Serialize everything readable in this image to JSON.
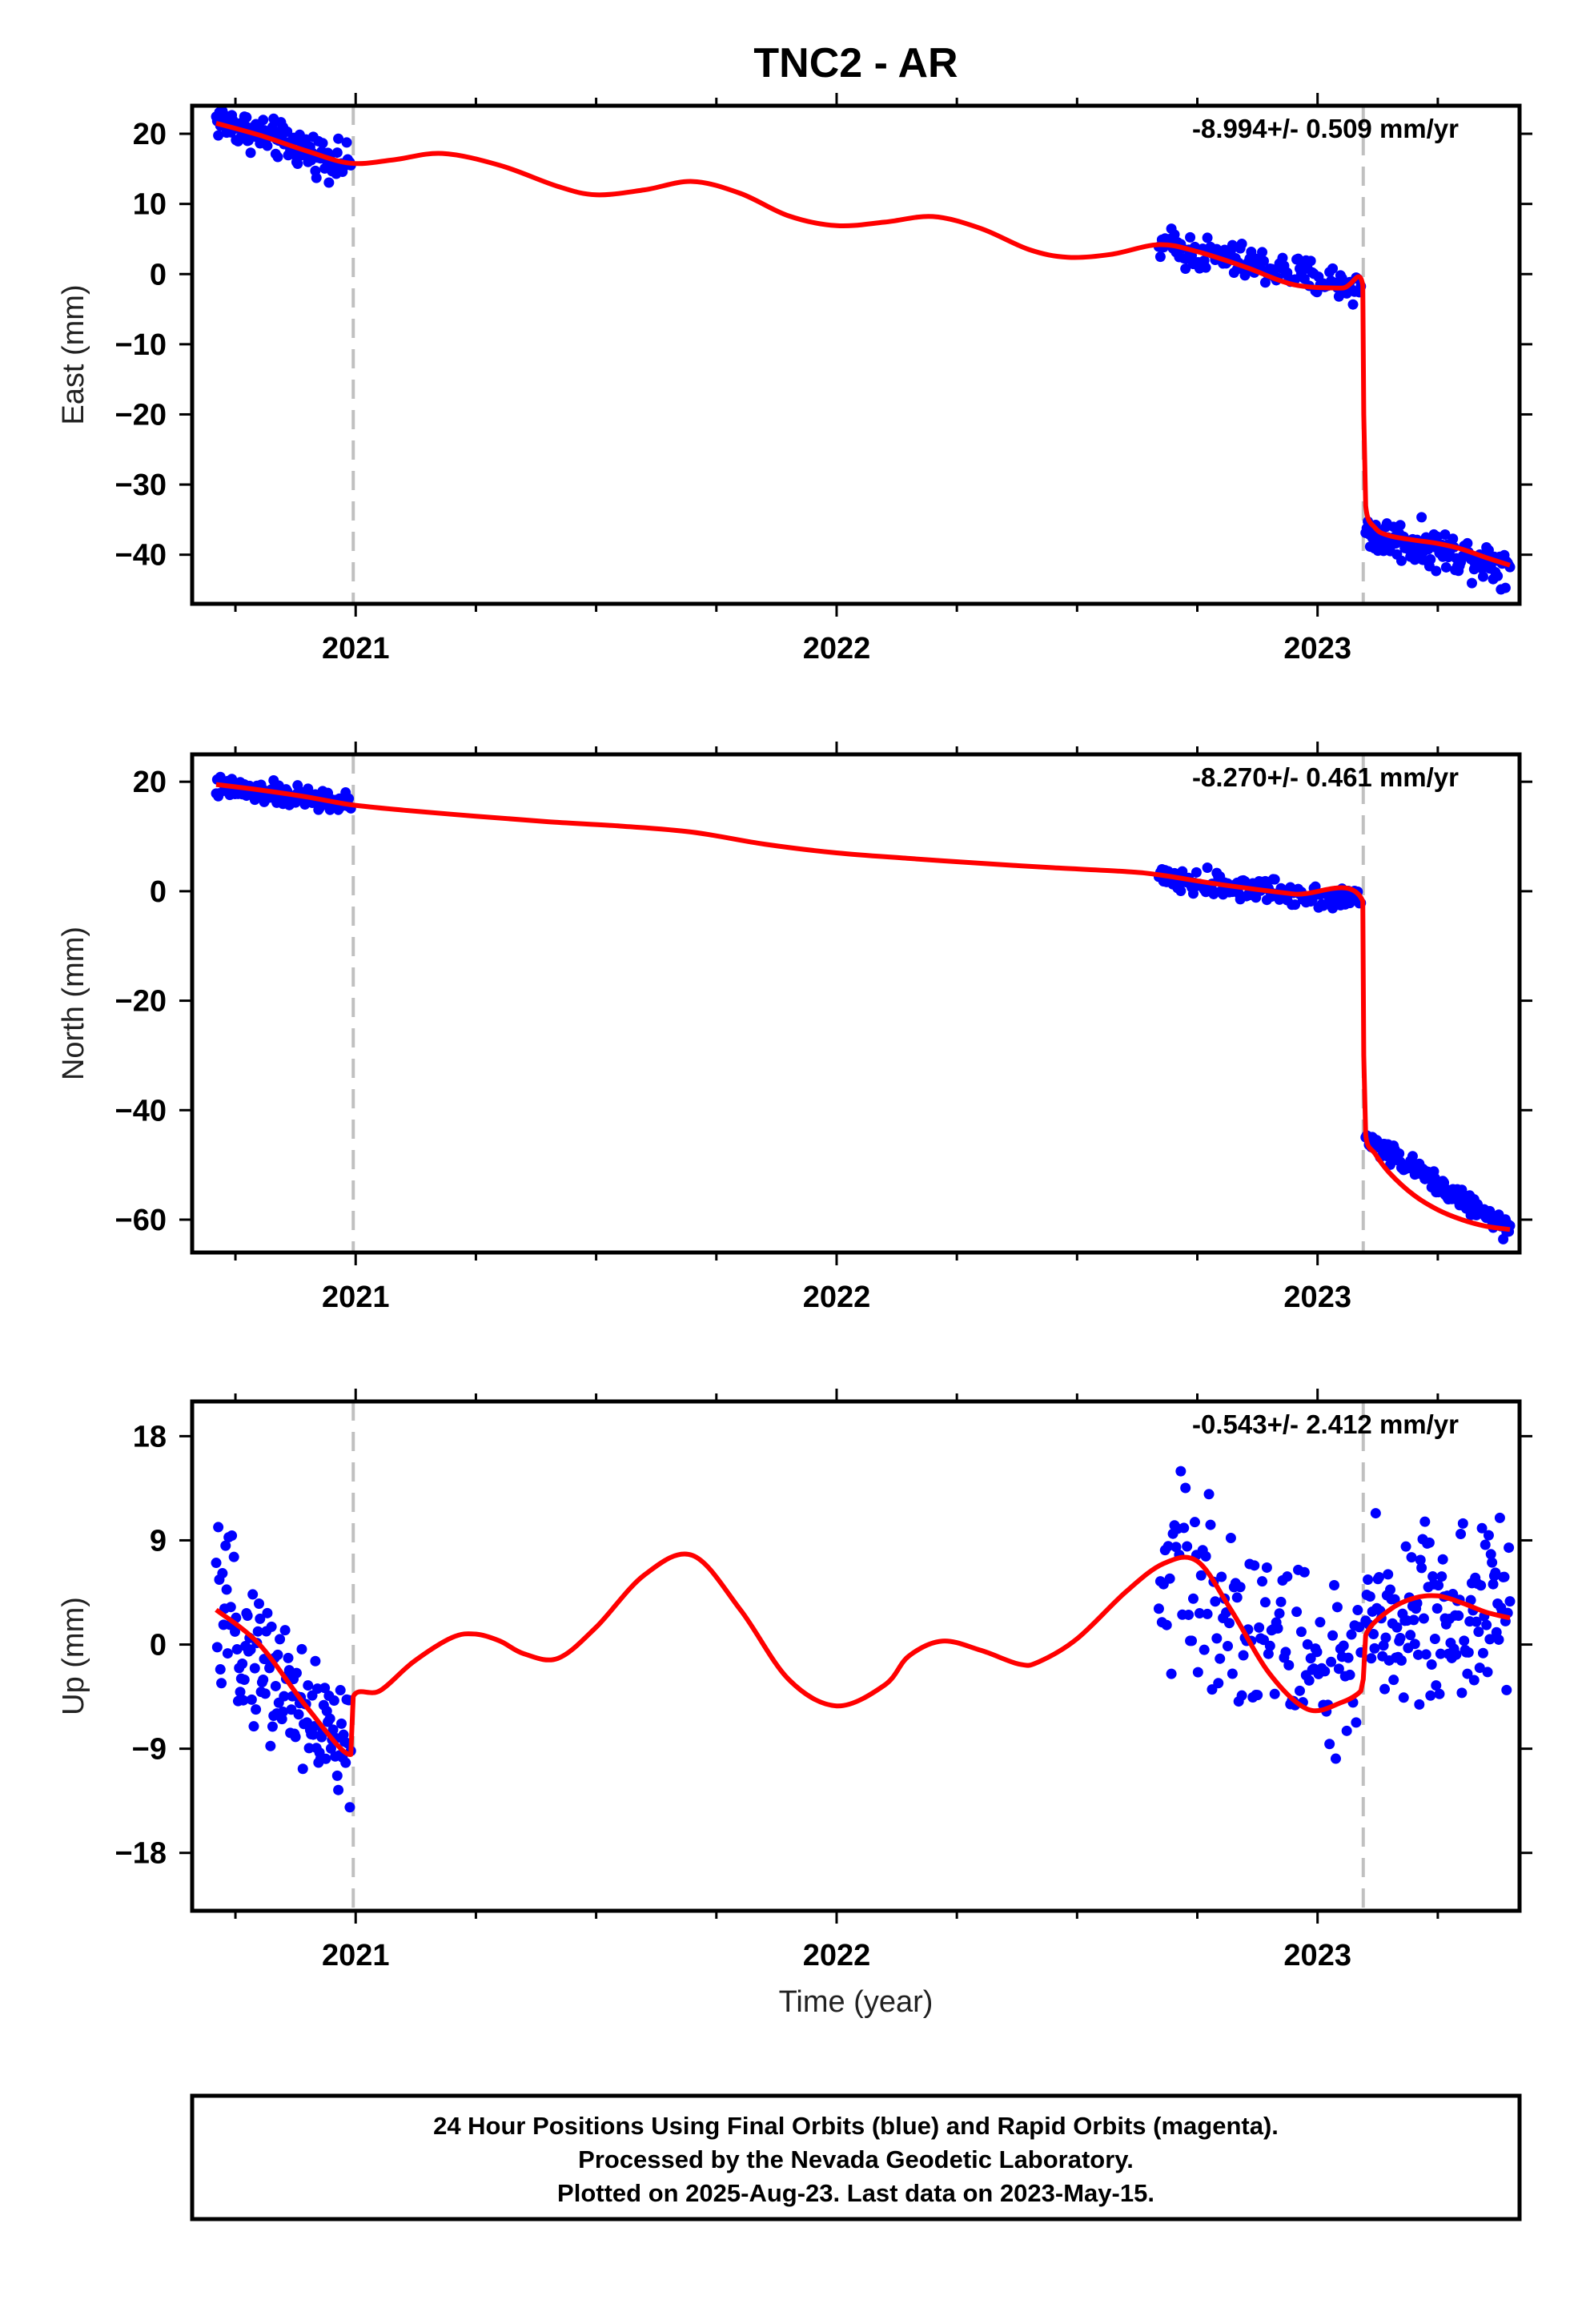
{
  "title": "TNC2 - AR",
  "xlabel": "Time (year)",
  "colors": {
    "observations": "#0000ff",
    "model": "#ff0000",
    "event_line": "#c0c0c0",
    "frame": "#000000"
  },
  "footer": {
    "line1": "24 Hour Positions Using Final Orbits (blue) and Rapid Orbits (magenta).",
    "line2": "Processed by the Nevada Geodetic Laboratory.",
    "line3": "Plotted on 2025-Aug-23. Last data on 2023-May-15."
  },
  "chart_data": [
    {
      "type": "scatter",
      "ylabel": "East (mm)",
      "rate_text": "-8.994+/- 0.509 mm/yr",
      "xlim": [
        2020.66,
        2023.42
      ],
      "ylim": [
        -47,
        24
      ],
      "yticks": [
        20,
        10,
        0,
        -10,
        -20,
        -30,
        -40
      ],
      "xticks": [
        2021,
        2022,
        2023
      ],
      "event_lines": [
        2020.995,
        2023.095
      ],
      "grid": false,
      "data_segments": [
        {
          "x": [
            2020.71,
            2020.99
          ],
          "y": [
            22,
            15.5
          ],
          "spread": 1.3
        },
        {
          "x": [
            2022.67,
            2023.09
          ],
          "y": [
            4.2,
            -2
          ],
          "spread": 1.3
        },
        {
          "x": [
            2023.1,
            2023.4
          ],
          "y": [
            -37,
            -41.5
          ],
          "spread": 1.4
        }
      ],
      "model": {
        "x": [
          2020.71,
          2020.8,
          2020.9,
          2020.99,
          2021.08,
          2021.18,
          2021.3,
          2021.42,
          2021.5,
          2021.6,
          2021.7,
          2021.8,
          2021.9,
          2022.0,
          2022.1,
          2022.2,
          2022.3,
          2022.4,
          2022.48,
          2022.57,
          2022.67,
          2022.75,
          2022.85,
          2022.95,
          2023.05,
          2023.094,
          2023.096,
          2023.1,
          2023.12,
          2023.15,
          2023.2,
          2023.25,
          2023.3,
          2023.35,
          2023.4
        ],
        "y": [
          21.5,
          19.8,
          17.5,
          15.8,
          16.3,
          17.2,
          15.5,
          12.5,
          11.3,
          12.0,
          13.2,
          11.5,
          8.3,
          6.9,
          7.4,
          8.2,
          6.5,
          3.5,
          2.4,
          2.8,
          4.2,
          3.2,
          1.0,
          -1.5,
          -2.0,
          -1.6,
          -20,
          -33,
          -36.2,
          -37.3,
          -37.9,
          -38.4,
          -39.2,
          -40.4,
          -41.5
        ]
      }
    },
    {
      "type": "scatter",
      "ylabel": "North (mm)",
      "rate_text": "-8.270+/- 0.461 mm/yr",
      "xlim": [
        2020.66,
        2023.42
      ],
      "ylim": [
        -66,
        25
      ],
      "yticks": [
        20,
        0,
        -20,
        -40,
        -60
      ],
      "xticks": [
        2021,
        2022,
        2023
      ],
      "event_lines": [
        2020.995,
        2023.095
      ],
      "grid": false,
      "data_segments": [
        {
          "x": [
            2020.71,
            2020.99
          ],
          "y": [
            19,
            16
          ],
          "spread": 1.0
        },
        {
          "x": [
            2022.67,
            2023.09
          ],
          "y": [
            2.2,
            -1.6
          ],
          "spread": 1.1
        },
        {
          "x": [
            2023.1,
            2023.4
          ],
          "y": [
            -45,
            -62
          ],
          "spread": 0.9
        }
      ],
      "model": {
        "x": [
          2020.71,
          2020.8,
          2020.9,
          2020.99,
          2021.1,
          2021.25,
          2021.4,
          2021.55,
          2021.7,
          2021.85,
          2022.0,
          2022.15,
          2022.3,
          2022.45,
          2022.6,
          2022.67,
          2022.8,
          2022.95,
          2023.094,
          2023.096,
          2023.1,
          2023.12,
          2023.15,
          2023.2,
          2023.25,
          2023.3,
          2023.35,
          2023.4
        ],
        "y": [
          19.5,
          18.5,
          17.2,
          15.8,
          14.8,
          13.7,
          12.7,
          11.9,
          10.8,
          8.6,
          7.0,
          6.0,
          5.1,
          4.3,
          3.6,
          3.0,
          1.2,
          -0.5,
          -1.8,
          -30,
          -44.5,
          -48,
          -51.5,
          -55.5,
          -58.2,
          -60.0,
          -61.2,
          -61.8
        ]
      }
    },
    {
      "type": "scatter",
      "ylabel": "Up (mm)",
      "rate_text": "-0.543+/- 2.412 mm/yr",
      "xlim": [
        2020.66,
        2023.42
      ],
      "ylim": [
        -23,
        21
      ],
      "yticks": [
        18,
        9,
        0,
        -9,
        -18
      ],
      "xticks": [
        2021,
        2022,
        2023
      ],
      "event_lines": [
        2020.995,
        2023.095
      ],
      "grid": false,
      "data_segments": [
        {
          "x": [
            2020.71,
            2020.99
          ],
          "y": [
            3,
            -10
          ],
          "spread": 3.0
        },
        {
          "x": [
            2022.67,
            2023.09
          ],
          "y": [
            7,
            -4
          ],
          "spread": 4.0
        },
        {
          "x": [
            2023.1,
            2023.4
          ],
          "y": [
            2,
            3
          ],
          "spread": 4.0
        }
      ],
      "model": {
        "x": [
          2020.71,
          2020.8,
          2020.9,
          2020.99,
          2020.995,
          2021.05,
          2021.12,
          2021.2,
          2021.25,
          2021.3,
          2021.35,
          2021.42,
          2021.5,
          2021.6,
          2021.7,
          2021.8,
          2021.9,
          2022.0,
          2022.1,
          2022.15,
          2022.22,
          2022.3,
          2022.38,
          2022.42,
          2022.5,
          2022.6,
          2022.68,
          2022.75,
          2022.82,
          2022.9,
          2022.98,
          2023.05,
          2023.09,
          2023.095,
          2023.1,
          2023.15,
          2023.2,
          2023.25,
          2023.3,
          2023.35,
          2023.4
        ],
        "y": [
          3,
          0,
          -5.5,
          -9.5,
          -4.5,
          -4.0,
          -1.5,
          0.6,
          0.9,
          0.3,
          -0.8,
          -1.2,
          1.5,
          6.0,
          7.7,
          3.0,
          -3.0,
          -5.3,
          -3.5,
          -1.0,
          0.3,
          -0.5,
          -1.7,
          -1.5,
          0.5,
          4.5,
          7.0,
          7.2,
          3.0,
          -2.5,
          -5.6,
          -5.0,
          -4.0,
          -3.0,
          0.8,
          3.0,
          4.0,
          4.2,
          3.6,
          2.8,
          2.3
        ]
      }
    }
  ]
}
